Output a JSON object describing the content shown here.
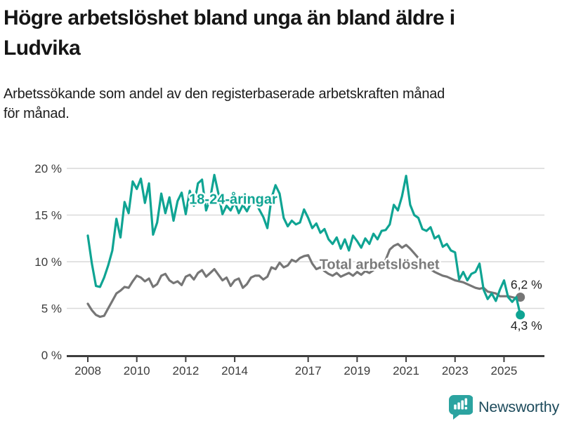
{
  "header": {
    "title_line1": "Högre arbetslöshet bland unga än bland äldre i",
    "title_line2": "Ludvika",
    "subtitle_line1": "Arbetssökande som andel av den registerbaserade arbetskraften månad",
    "subtitle_line2": "för månad."
  },
  "footer": {
    "brand": "Newsworthy",
    "brand_color": "#1d4b5c",
    "icon_color": "#2ba3a0"
  },
  "chart_data": {
    "type": "line",
    "title": "Högre arbetslöshet bland unga än bland äldre i Ludvika",
    "subtitle": "Arbetssökande som andel av den registerbaserade arbetskraften månad för månad.",
    "unit": "%",
    "grid": "horizontal",
    "ylim": [
      0,
      20.5
    ],
    "x_start_year": 2008,
    "x_step_years": 0.1666667,
    "y_ticks": [
      {
        "value": 0,
        "label": "0 %"
      },
      {
        "value": 5,
        "label": "5 %"
      },
      {
        "value": 10,
        "label": "10 %"
      },
      {
        "value": 15,
        "label": "15 %"
      },
      {
        "value": 20,
        "label": "20 %"
      }
    ],
    "x_ticks": [
      {
        "value": 2008,
        "label": "2008"
      },
      {
        "value": 2010,
        "label": "2010"
      },
      {
        "value": 2012,
        "label": "2012"
      },
      {
        "value": 2014,
        "label": "2014"
      },
      {
        "value": 2017,
        "label": "2017"
      },
      {
        "value": 2019,
        "label": "2019"
      },
      {
        "value": 2021,
        "label": "2021"
      },
      {
        "value": 2023,
        "label": "2023"
      },
      {
        "value": 2025,
        "label": "2025"
      }
    ],
    "series": [
      {
        "id": "total",
        "name": "Total arbetslöshet",
        "color": "#767676",
        "end_value": 6.2,
        "end_label": "6,2 %",
        "values": [
          5.5,
          4.8,
          4.3,
          4.1,
          4.2,
          5.0,
          5.8,
          6.6,
          6.9,
          7.3,
          7.2,
          7.9,
          8.5,
          8.3,
          7.9,
          8.2,
          7.3,
          7.6,
          8.5,
          8.7,
          8.0,
          7.7,
          7.9,
          7.5,
          8.4,
          8.6,
          8.1,
          8.8,
          9.1,
          8.4,
          8.8,
          9.2,
          8.6,
          8.0,
          8.3,
          7.4,
          8.0,
          8.2,
          7.2,
          7.6,
          8.3,
          8.5,
          8.5,
          8.1,
          8.4,
          9.4,
          9.2,
          9.9,
          9.4,
          9.6,
          10.2,
          10.0,
          10.4,
          10.6,
          10.7,
          9.8,
          9.2,
          9.4,
          9.0,
          8.7,
          8.5,
          8.8,
          8.4,
          8.6,
          8.8,
          8.5,
          8.9,
          8.6,
          9.0,
          8.8,
          9.1,
          9.3,
          9.7,
          10.2,
          11.3,
          11.7,
          11.9,
          11.5,
          11.8,
          11.4,
          10.9,
          10.4,
          10.0,
          9.6,
          9.2,
          8.9,
          8.7,
          8.5,
          8.4,
          8.2,
          8.0,
          7.9,
          7.8,
          7.6,
          7.4,
          7.2,
          7.1,
          7.2,
          6.8,
          6.7,
          6.6,
          6.3,
          6.3,
          6.3,
          6.2,
          6.1,
          6.2
        ]
      },
      {
        "id": "young",
        "name": "18-24-åringar",
        "color": "#0fa493",
        "end_value": 4.3,
        "end_label": "4,3 %",
        "values": [
          12.8,
          9.8,
          7.4,
          7.3,
          8.3,
          9.6,
          11.2,
          14.6,
          12.6,
          16.4,
          15.2,
          18.6,
          17.8,
          18.9,
          16.3,
          18.4,
          12.9,
          14.2,
          17.3,
          15.2,
          16.9,
          14.4,
          16.5,
          17.4,
          15.1,
          17.6,
          16.0,
          18.4,
          18.8,
          15.5,
          16.8,
          19.3,
          17.3,
          15.1,
          16.0,
          15.5,
          16.4,
          15.2,
          16.1,
          15.4,
          16.3,
          16.5,
          15.6,
          14.8,
          13.6,
          16.8,
          18.2,
          17.3,
          14.7,
          13.8,
          14.4,
          14.0,
          14.2,
          15.6,
          14.7,
          13.6,
          14.1,
          13.1,
          13.5,
          12.4,
          11.9,
          12.6,
          11.4,
          12.4,
          11.2,
          12.8,
          12.2,
          11.5,
          12.5,
          11.9,
          13.0,
          12.4,
          13.3,
          13.4,
          14.0,
          16.1,
          15.5,
          17.0,
          19.2,
          16.1,
          15.0,
          14.7,
          13.5,
          13.3,
          13.7,
          12.5,
          12.8,
          11.6,
          11.9,
          11.2,
          11.0,
          8.1,
          8.9,
          8.0,
          8.7,
          8.9,
          9.8,
          7.0,
          6.0,
          6.6,
          5.8,
          7.0,
          8.0,
          6.2,
          5.7,
          6.2,
          4.3
        ]
      }
    ],
    "annotations": [
      {
        "name": "series-label-young",
        "text": "18-24-åringar",
        "t": 2013.94,
        "pct": 16.2,
        "color": "#0fa493",
        "anchor": "middle",
        "size": 20,
        "bold": true
      },
      {
        "name": "series-label-total",
        "text": "Total arbetslöshet",
        "t": 2019.91,
        "pct": 9.2,
        "color": "#7b7b7b",
        "anchor": "middle",
        "size": 20,
        "bold": true
      },
      {
        "name": "end-label-total",
        "text": "6,2 %",
        "t": 2025.27,
        "pct": 7.1,
        "color": "#222222",
        "anchor": "start",
        "size": 17.5,
        "bold": false
      },
      {
        "name": "end-label-young",
        "text": "4,3 %",
        "t": 2025.27,
        "pct": 2.7,
        "color": "#222222",
        "anchor": "start",
        "size": 17.5,
        "bold": false
      }
    ]
  }
}
